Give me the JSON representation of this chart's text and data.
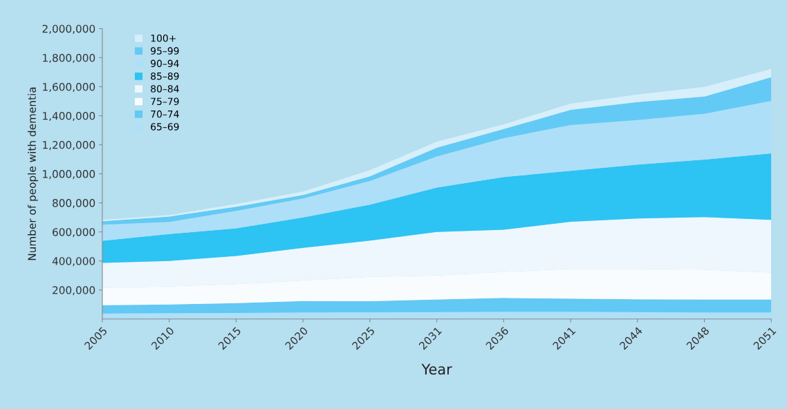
{
  "chart_data": {
    "type": "area",
    "stacked": true,
    "xlabel": "Year",
    "ylabel": "Number of people with dementia",
    "categories": [
      "2005",
      "2010",
      "2015",
      "2020",
      "2025",
      "2031",
      "2036",
      "2041",
      "2044",
      "2048",
      "2051"
    ],
    "ylim": [
      0,
      2000000
    ],
    "yticks": [
      {
        "value": 200000,
        "label": "200,000"
      },
      {
        "value": 400000,
        "label": "400,000"
      },
      {
        "value": 600000,
        "label": "600,000"
      },
      {
        "value": 800000,
        "label": "800,000"
      },
      {
        "value": 1000000,
        "label": "1,000,000"
      },
      {
        "value": 1200000,
        "label": "1,200,000"
      },
      {
        "value": 1400000,
        "label": "1,400,000"
      },
      {
        "value": 1600000,
        "label": "1,600,000"
      },
      {
        "value": 1800000,
        "label": "1,800,000"
      },
      {
        "value": 2000000,
        "label": "2,000,000"
      }
    ],
    "grid": false,
    "legend": "top left",
    "series": [
      {
        "name": "65–69",
        "color": "#aee0f8",
        "values": [
          38000,
          40000,
          42000,
          45000,
          47000,
          48000,
          50000,
          50000,
          48000,
          45000,
          45000
        ]
      },
      {
        "name": "70–74",
        "color": "#62c8f4",
        "values": [
          57000,
          60000,
          68000,
          79000,
          75000,
          87000,
          95000,
          90000,
          88000,
          89000,
          89000
        ]
      },
      {
        "name": "75–79",
        "color": "#f8fcff",
        "values": [
          120000,
          125000,
          130000,
          141000,
          168000,
          165000,
          180000,
          205000,
          209000,
          206000,
          186000
        ]
      },
      {
        "name": "80–84",
        "color": "#eef7fd",
        "values": [
          172000,
          175000,
          194000,
          225000,
          250000,
          300000,
          290000,
          325000,
          347000,
          362000,
          363000
        ]
      },
      {
        "name": "85–89",
        "color": "#2dc3f3",
        "values": [
          152000,
          185000,
          191000,
          210000,
          248000,
          305000,
          363000,
          351000,
          372000,
          396000,
          458000
        ]
      },
      {
        "name": "90–94",
        "color": "#aedff9",
        "values": [
          110000,
          83000,
          120000,
          130000,
          162000,
          215000,
          268000,
          315000,
          306000,
          315000,
          362000
        ]
      },
      {
        "name": "95–99",
        "color": "#63caf5",
        "values": [
          24000,
          38000,
          28000,
          24000,
          33000,
          60000,
          62000,
          105000,
          124000,
          119000,
          163000
        ]
      },
      {
        "name": "100+",
        "color": "#d6effa",
        "values": [
          10000,
          10000,
          19000,
          24000,
          43000,
          42000,
          33000,
          43000,
          52000,
          67000,
          57000
        ]
      }
    ]
  }
}
